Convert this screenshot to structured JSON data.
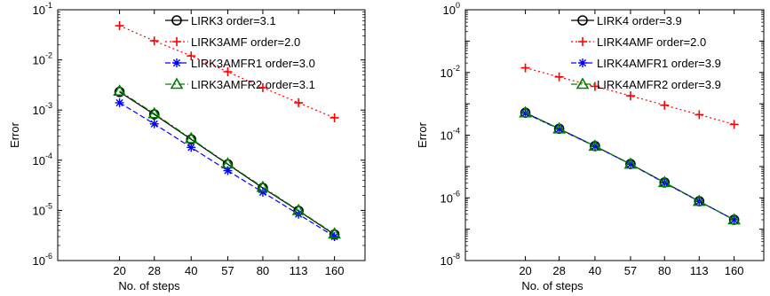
{
  "chart_data": [
    {
      "type": "line",
      "log_y": true,
      "x_scale": "log",
      "xlabel": "No. of steps",
      "ylabel": "Error",
      "categories": [
        "20",
        "28",
        "40",
        "57",
        "80",
        "113",
        "160"
      ],
      "x": [
        20,
        28,
        40,
        57,
        80,
        113,
        160
      ],
      "xlim": [
        11,
        215
      ],
      "ylim": [
        1e-06,
        0.1
      ],
      "ytick_exponents": [
        -6,
        -5,
        -4,
        -3,
        -2,
        -1
      ],
      "legend_position": "top-right",
      "series": [
        {
          "name": "LIRK3 order=3.1",
          "color": "#000000",
          "marker": "circle",
          "line": "solid",
          "values": [
            0.0023,
            0.00082,
            0.00026,
            8.3e-05,
            2.8e-05,
            9.8e-06,
            3.3e-06
          ]
        },
        {
          "name": "LIRK3AMF order=2.0",
          "color": "#ff0000",
          "marker": "plus",
          "line": "dotted",
          "values": [
            0.048,
            0.024,
            0.012,
            0.0058,
            0.0028,
            0.0014,
            0.0007
          ]
        },
        {
          "name": "LIRK3AMFR1 order=3.0",
          "color": "#0000ff",
          "marker": "star",
          "line": "dashed",
          "values": [
            0.0014,
            0.00053,
            0.00018,
            6.2e-05,
            2.3e-05,
            8.4e-06,
            3e-06
          ]
        },
        {
          "name": "LIRK3AMFR2 order=3.1",
          "color": "#008000",
          "marker": "triangle",
          "line": "dashdot",
          "values": [
            0.0024,
            0.00085,
            0.00027,
            8.5e-05,
            2.9e-05,
            1e-05,
            3.4e-06
          ]
        }
      ]
    },
    {
      "type": "line",
      "log_y": true,
      "x_scale": "log",
      "xlabel": "No. of steps",
      "ylabel": "Error",
      "categories": [
        "20",
        "28",
        "40",
        "57",
        "80",
        "113",
        "160"
      ],
      "x": [
        20,
        28,
        40,
        57,
        80,
        113,
        160
      ],
      "xlim": [
        11,
        215
      ],
      "ylim": [
        1e-08,
        1
      ],
      "ytick_exponents": [
        -8,
        -6,
        -4,
        -2,
        0
      ],
      "legend_position": "top-right",
      "series": [
        {
          "name": "LIRK4 order=3.9",
          "color": "#000000",
          "marker": "circle",
          "line": "solid",
          "values": [
            0.00052,
            0.00016,
            4.5e-05,
            1.2e-05,
            3.1e-06,
            7.8e-07,
            2e-07
          ]
        },
        {
          "name": "LIRK4AMF order=2.0",
          "color": "#ff0000",
          "marker": "plus",
          "line": "dotted",
          "values": [
            0.014,
            0.0072,
            0.0036,
            0.0018,
            0.0009,
            0.00045,
            0.00022
          ]
        },
        {
          "name": "LIRK4AMFR1 order=3.9",
          "color": "#0000ff",
          "marker": "star",
          "line": "dashed",
          "values": [
            0.0005,
            0.000155,
            4.4e-05,
            1.18e-05,
            3e-06,
            7.7e-07,
            2e-07
          ]
        },
        {
          "name": "LIRK4AMFR2 order=3.9",
          "color": "#008000",
          "marker": "triangle",
          "line": "dashdot",
          "values": [
            0.00052,
            0.00016,
            4.5e-05,
            1.2e-05,
            3.1e-06,
            7.8e-07,
            2e-07
          ]
        }
      ]
    }
  ]
}
